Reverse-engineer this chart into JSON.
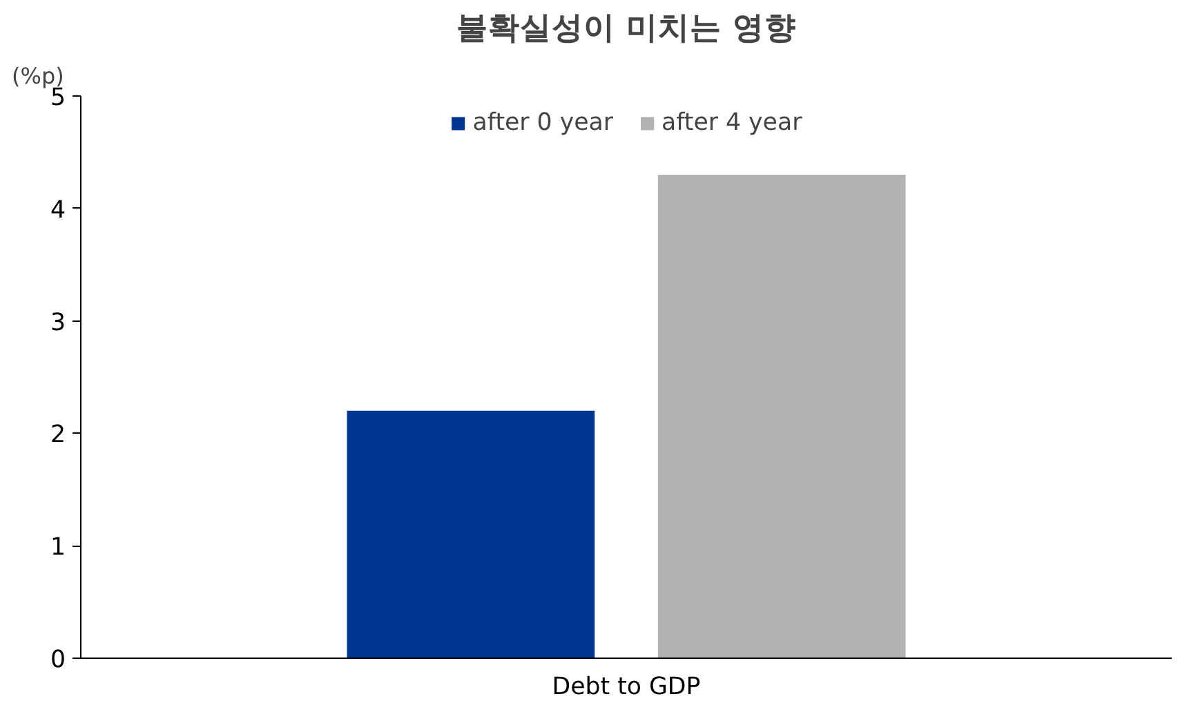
{
  "chart_data": {
    "type": "bar",
    "title": "불확실성이 미치는 영향",
    "ylabel": "(%p)",
    "categories": [
      "Debt to GDP"
    ],
    "series": [
      {
        "name": "after 0 year",
        "color": "#003591",
        "values": [
          2.2
        ]
      },
      {
        "name": "after 4 year",
        "color": "#b2b2b2",
        "values": [
          4.3
        ]
      }
    ],
    "ylim": [
      0,
      5
    ],
    "yticks": [
      0,
      1,
      2,
      3,
      4,
      5
    ],
    "grid": false,
    "legend": "top"
  }
}
